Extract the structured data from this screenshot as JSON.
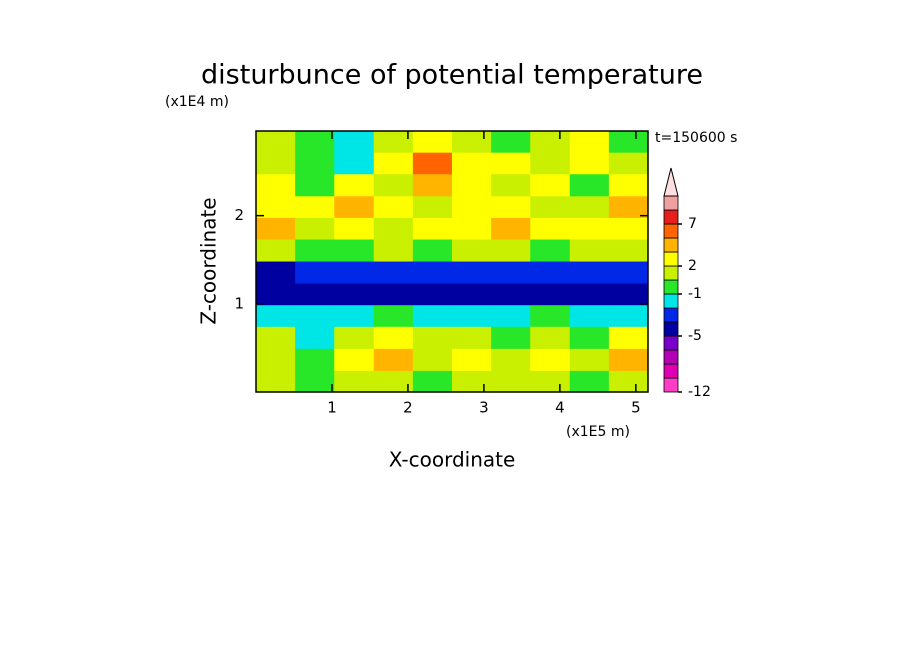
{
  "chart_data": {
    "type": "contour",
    "title": "disturbunce of potential temperature",
    "x_label": "X-coordinate",
    "y_label": "Z-coordinate",
    "x_unit": "(x1E5 m)",
    "y_unit": "(x1E4 m)",
    "annotation": "t=150600 s",
    "xlim": [
      0,
      5.16
    ],
    "ylim": [
      0,
      2.96
    ],
    "xticks": [
      1,
      2,
      3,
      4,
      5
    ],
    "yticks": [
      1,
      2
    ],
    "x": [
      0.26,
      0.77,
      1.29,
      1.81,
      2.32,
      2.84,
      3.35,
      3.87,
      4.39,
      4.9
    ],
    "z": [
      0.12,
      0.37,
      0.62,
      0.87,
      1.11,
      1.36,
      1.61,
      1.86,
      2.1,
      2.35,
      2.6,
      2.84
    ],
    "values": [
      [
        0.5,
        -0.5,
        0.5,
        1,
        -0.5,
        0.5,
        1,
        0.5,
        -0.5,
        1
      ],
      [
        1,
        -0.5,
        2.5,
        3,
        1,
        2.5,
        1,
        2.5,
        0.5,
        3.5
      ],
      [
        0.5,
        -1.5,
        1,
        2.5,
        0.5,
        1,
        -0.5,
        1,
        -0.5,
        2.5
      ],
      [
        -1.5,
        -1.5,
        -1.5,
        -0.5,
        -1.5,
        -1.5,
        -1.5,
        -0.5,
        -1.5,
        -1.5
      ],
      [
        -3.5,
        -4,
        -4,
        -4,
        -3.5,
        -4,
        -4,
        -4,
        -3.5,
        -3.5
      ],
      [
        -4,
        -2.5,
        -2.5,
        -2.5,
        -2.5,
        -2.5,
        -2.5,
        -2.5,
        -2.5,
        -2.5
      ],
      [
        1,
        -0.5,
        -0.5,
        0.5,
        -0.5,
        1,
        0.5,
        -0.5,
        1,
        1
      ],
      [
        3.5,
        1,
        2.5,
        1,
        2.5,
        2.5,
        4,
        2.5,
        2.5,
        2.5
      ],
      [
        2.5,
        2.5,
        3.5,
        2.5,
        1,
        2.5,
        2.5,
        1,
        1,
        4
      ],
      [
        2.5,
        -0.5,
        2.5,
        1,
        4,
        2.5,
        1,
        2.5,
        -0.5,
        2.5
      ],
      [
        1,
        -0.5,
        -1.5,
        2.5,
        6,
        2.5,
        2.5,
        1,
        2.5,
        1
      ],
      [
        0.5,
        -0.5,
        -1.5,
        0.5,
        2.5,
        0.5,
        -0.5,
        1,
        2.5,
        -0.5
      ]
    ],
    "levels": [
      -12,
      -10,
      -8,
      -6,
      -5,
      -3,
      -2,
      -1,
      0,
      2,
      3,
      5,
      7,
      9,
      12
    ],
    "colors": [
      "#ff3cc8",
      "#e000b4",
      "#b400b4",
      "#7800c8",
      "#0000a0",
      "#0028e6",
      "#00e6e6",
      "#28e628",
      "#c8f000",
      "#ffff00",
      "#ffb400",
      "#ff6400",
      "#e61e1e",
      "#f0a0a0"
    ],
    "over_color": "#ffe0e0",
    "colorbar_ticks": [
      -12,
      -5,
      -1,
      2,
      7
    ]
  }
}
